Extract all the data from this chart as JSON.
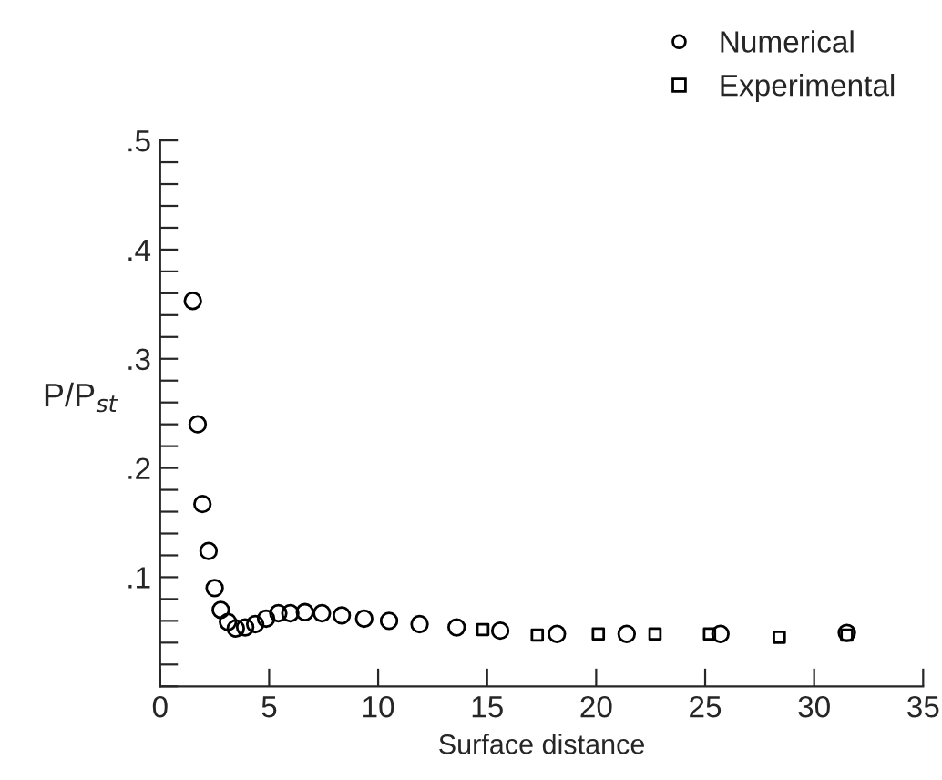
{
  "chart_data": {
    "type": "scatter",
    "xlabel": "Surface distance",
    "ylabel": "P/P$_{st}$",
    "xlim": [
      0,
      35
    ],
    "ylim": [
      0,
      0.5
    ],
    "xticks": [
      0,
      5,
      10,
      15,
      20,
      25,
      30,
      35
    ],
    "yticks": [
      {
        "value": 0,
        "label": null
      },
      {
        "value": 0.02,
        "label": null
      },
      {
        "value": 0.04,
        "label": null
      },
      {
        "value": 0.06,
        "label": null
      },
      {
        "value": 0.08,
        "label": null
      },
      {
        "value": 0.1,
        "label": ".1"
      },
      {
        "value": 0.12,
        "label": null
      },
      {
        "value": 0.14,
        "label": null
      },
      {
        "value": 0.16,
        "label": null
      },
      {
        "value": 0.18,
        "label": null
      },
      {
        "value": 0.2,
        "label": ".2"
      },
      {
        "value": 0.22,
        "label": null
      },
      {
        "value": 0.24,
        "label": null
      },
      {
        "value": 0.26,
        "label": null
      },
      {
        "value": 0.28,
        "label": null
      },
      {
        "value": 0.3,
        "label": ".3"
      },
      {
        "value": 0.32,
        "label": null
      },
      {
        "value": 0.34,
        "label": null
      },
      {
        "value": 0.36,
        "label": null
      },
      {
        "value": 0.38,
        "label": null
      },
      {
        "value": 0.4,
        "label": ".4"
      },
      {
        "value": 0.42,
        "label": null
      },
      {
        "value": 0.44,
        "label": null
      },
      {
        "value": 0.46,
        "label": null
      },
      {
        "value": 0.48,
        "label": null
      },
      {
        "value": 0.5,
        "label": ".5"
      }
    ],
    "grid": false,
    "legend": "top right",
    "series": [
      {
        "name": "Numerical",
        "color": "#000000",
        "marker": "circle",
        "x": [
          1.5,
          1.72,
          1.94,
          2.22,
          2.5,
          2.78,
          3.11,
          3.47,
          3.9,
          4.36,
          4.86,
          5.42,
          5.97,
          6.64,
          7.42,
          8.33,
          9.36,
          10.5,
          11.9,
          13.6,
          15.6,
          18.2,
          21.4,
          25.7,
          31.5
        ],
        "values": [
          0.353,
          0.24,
          0.167,
          0.124,
          0.09,
          0.07,
          0.059,
          0.053,
          0.054,
          0.057,
          0.062,
          0.067,
          0.067,
          0.068,
          0.067,
          0.065,
          0.062,
          0.06,
          0.057,
          0.054,
          0.051,
          0.048,
          0.048,
          0.048,
          0.049
        ]
      },
      {
        "name": "Experimental",
        "color": "#000000",
        "marker": "square",
        "x": [
          14.8,
          17.3,
          20.1,
          22.7,
          25.2,
          28.4,
          31.5
        ],
        "values": [
          0.052,
          0.047,
          0.048,
          0.048,
          0.048,
          0.045,
          0.047
        ]
      }
    ]
  }
}
